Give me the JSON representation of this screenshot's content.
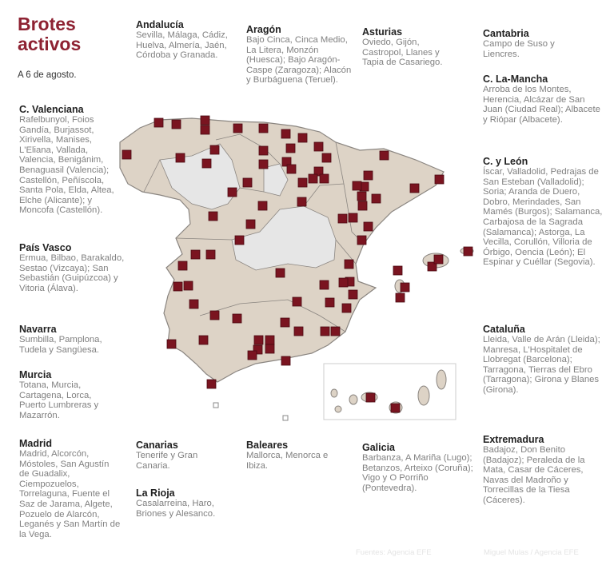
{
  "header": {
    "title": "Brotes activos",
    "date": "A 6 de agosto."
  },
  "colors": {
    "accent": "#8e2232",
    "marker": "#7a1420",
    "land": "#ddd3c6",
    "land_light": "#e6e6e6",
    "border": "#8a8580"
  },
  "map": {
    "marker_icon": "red-square-outbreak-marker",
    "inset": "Canarias"
  },
  "regions": {
    "andalucia": {
      "name": "Andalucía",
      "places": "Sevilla, Málaga, Cádiz, Huelva, Almería, Jaén, Córdoba y Granada."
    },
    "aragon": {
      "name": "Aragón",
      "places": "Bajo Cinca, Cinca Medio, La Litera, Monzón (Huesca); Bajo Aragón-Caspe (Zaragoza); Alacón y Burbáguena (Teruel)."
    },
    "asturias": {
      "name": "Asturias",
      "places": "Oviedo, Gijón, Castropol, Llanes y Tapia de Casariego."
    },
    "cantabria": {
      "name": "Cantabria",
      "places": "Campo de Suso y Liencres."
    },
    "clamancha": {
      "name": "C. La-Mancha",
      "places": "Arroba de los Montes, Herencia, Alcázar de San Juan (Ciudad Real); Albacete y Riópar (Albacete)."
    },
    "cyleon": {
      "name": "C. y León",
      "places": "Íscar, Valladolid, Pedrajas de San Esteban (Valladolid); Soria; Aranda de Duero, Dobro, Merindades, San Mamés (Burgos); Salamanca, Carbajosa de la Sagrada (Salamanca); Astorga, La Vecilla, Corullón, Villoria de Órbigo, Oencia (León); El Espinar y Cuéllar (Segovia)."
    },
    "cataluna": {
      "name": "Cataluña",
      "places": "Lleida, Valle de Arán (Lleida); Manresa, L'Hospitalet de Llobregat (Barcelona); Tarragona, Tierras del Ebro (Tarragona); Girona y Blanes (Girona)."
    },
    "extremadura": {
      "name": "Extremadura",
      "places": "Badajoz, Don Benito (Badajoz); Peraleda de la Mata, Casar de Cáceres, Navas del Madroño y Torrecillas de la Tiesa (Cáceres)."
    },
    "cvalenciana": {
      "name": "C. Valenciana",
      "places": "Rafelbunyol, Foios Gandía, Burjassot, Xirivella, Manises, L'Eliana, Vallada, Valencia, Benigánim, Benaguasil (Valencia); Castellón, Peñíscola, Santa Pola, Elda, Altea, Elche (Alicante); y Moncofa (Castellón)."
    },
    "paisvasco": {
      "name": "País Vasco",
      "places": "Ermua, Bilbao, Barakaldo, Sestao (Vizcaya); San Sebastián (Guipúzcoa) y Vitoria (Álava)."
    },
    "navarra": {
      "name": "Navarra",
      "places": "Sumbilla, Pamplona, Tudela y Sangüesa."
    },
    "murcia": {
      "name": "Murcia",
      "places": "Totana, Murcia, Cartagena, Lorca, Puerto Lumbreras y Mazarrón."
    },
    "madrid": {
      "name": "Madrid",
      "places": "Madrid, Alcorcón, Móstoles, San Agustín de Guadalix, Ciempozuelos, Torrelaguna, Fuente el Saz de Jarama, Algete, Pozuelo de Alarcón, Leganés y San Martín de la Vega."
    },
    "canarias": {
      "name": "Canarias",
      "places": "Tenerife y Gran Canaria."
    },
    "larioja": {
      "name": "La Rioja",
      "places": "Casalarreina, Haro, Briones y Alesanco."
    },
    "baleares": {
      "name": "Baleares",
      "places": "Mallorca, Menorca e Ibiza."
    },
    "galicia": {
      "name": "Galicia",
      "places": "Barbanza, A Mariña (Lugo); Betanzos, Arteixo (Coruña); Vigo y O Porriño (Pontevedra)."
    }
  },
  "footer": {
    "source": "Fuentes: Agencia EFE",
    "credit": "Miguel Mulas / Agencia EFE"
  }
}
